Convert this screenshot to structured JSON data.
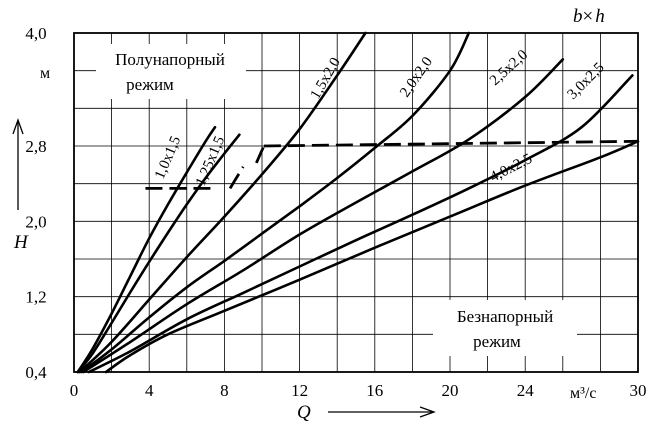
{
  "chart_data": {
    "type": "line",
    "xlabel": "Q",
    "ylabel": "H",
    "x_unit": "м³/с",
    "y_unit": "м",
    "xlim": [
      0,
      30
    ],
    "ylim": [
      0.4,
      4.0
    ],
    "x_ticks": [
      0,
      4,
      8,
      12,
      16,
      20,
      24,
      30
    ],
    "x_tick_labels": [
      "0",
      "4",
      "8",
      "12",
      "16",
      "20",
      "24",
      "30"
    ],
    "y_ticks": [
      0.4,
      1.2,
      2.0,
      2.8,
      4.0
    ],
    "y_tick_labels": [
      "0,4",
      "1,2",
      "2,0",
      "2,8",
      "4,0"
    ],
    "grid": true,
    "legend_title": "b×h",
    "legend_title_b": "b",
    "legend_title_x": "×",
    "legend_title_h": "h",
    "regions": {
      "upper": [
        "Полунапорный",
        "режим"
      ],
      "lower": [
        "Безнапорный",
        "режим"
      ]
    },
    "series": [
      {
        "name": "1,0x1,5",
        "x": [
          0.2,
          1,
          2,
          3,
          4,
          5,
          6,
          7,
          7.5
        ],
        "y": [
          0.4,
          0.65,
          1.02,
          1.42,
          1.82,
          2.18,
          2.52,
          2.85,
          3.0
        ]
      },
      {
        "name": "1,25x1,5",
        "x": [
          0.2,
          1,
          2,
          3,
          4,
          5,
          6,
          7,
          8,
          8.8
        ],
        "y": [
          0.4,
          0.6,
          0.92,
          1.25,
          1.57,
          1.88,
          2.18,
          2.46,
          2.72,
          2.92
        ]
      },
      {
        "name": "1,5x2,0",
        "x": [
          0.3,
          2,
          4,
          6,
          8,
          10,
          12,
          14,
          15.5
        ],
        "y": [
          0.4,
          0.72,
          1.17,
          1.62,
          2.05,
          2.5,
          2.98,
          3.55,
          4.0
        ]
      },
      {
        "name": "2,0x2,0",
        "x": [
          0.4,
          2,
          4,
          6,
          8,
          10,
          12,
          14,
          16,
          18,
          20,
          21
        ],
        "y": [
          0.4,
          0.64,
          0.98,
          1.3,
          1.58,
          1.87,
          2.16,
          2.46,
          2.78,
          3.12,
          3.6,
          4.0
        ]
      },
      {
        "name": "2,5x2,0",
        "x": [
          0.5,
          3,
          6,
          9,
          12,
          15,
          18,
          21,
          24,
          26
        ],
        "y": [
          0.4,
          0.72,
          1.12,
          1.48,
          1.86,
          2.2,
          2.53,
          2.87,
          3.32,
          3.72
        ]
      },
      {
        "name": "3,0x2,5",
        "x": [
          0.8,
          3,
          6,
          9,
          12,
          15,
          18,
          21,
          24,
          27,
          29.7
        ],
        "y": [
          0.4,
          0.62,
          0.96,
          1.24,
          1.52,
          1.8,
          2.07,
          2.35,
          2.65,
          3.0,
          3.55
        ]
      },
      {
        "name": "4,0x2,5",
        "x": [
          1.7,
          3,
          5,
          8,
          12,
          16,
          20,
          24,
          28,
          30
        ],
        "y": [
          0.4,
          0.58,
          0.8,
          1.05,
          1.38,
          1.72,
          2.05,
          2.38,
          2.68,
          2.85
        ]
      }
    ],
    "boundary": {
      "style": "dashed",
      "segments": [
        {
          "x": [
            3.8,
            7.6
          ],
          "y": [
            2.35,
            2.35
          ]
        },
        {
          "x": [
            8.3,
            9.0
          ],
          "y": [
            2.35,
            2.58
          ]
        },
        {
          "x": [
            9.7,
            10.1
          ],
          "y": [
            2.62,
            2.8
          ]
        },
        {
          "x": [
            10.1,
            30
          ],
          "y": [
            2.8,
            2.85
          ]
        }
      ]
    }
  }
}
